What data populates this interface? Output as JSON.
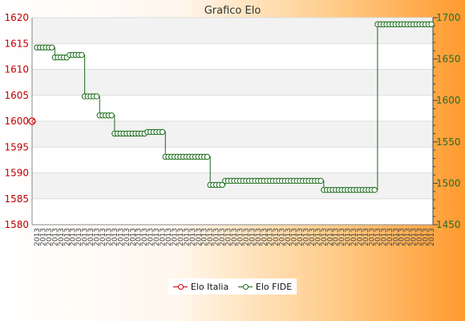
{
  "chart_data": {
    "type": "line",
    "title": "Grafico Elo",
    "y_left": {
      "ticks": [
        1580,
        1585,
        1590,
        1595,
        1600,
        1605,
        1610,
        1615,
        1620
      ],
      "range": [
        1580,
        1620
      ],
      "color": "#c00000"
    },
    "y_right": {
      "ticks": [
        1450,
        1500,
        1550,
        1600,
        1650,
        1700
      ],
      "range": [
        1450,
        1700
      ],
      "color": "#2a6a2a"
    },
    "x_label_sample": "2013",
    "grid": true,
    "legend_position": "bottom",
    "series": [
      {
        "name": "Elo Italia",
        "axis": "left",
        "color": "#cc0000",
        "values": [
          1600
        ]
      },
      {
        "name": "Elo FIDE",
        "axis": "right",
        "color": "#1a6b1a",
        "values": [
          1664,
          1664,
          1664,
          1664,
          1664,
          1664,
          1652,
          1652,
          1652,
          1652,
          1652,
          1655,
          1655,
          1655,
          1655,
          1655,
          1605,
          1605,
          1605,
          1605,
          1605,
          1582,
          1582,
          1582,
          1582,
          1582,
          1560,
          1560,
          1560,
          1560,
          1560,
          1560,
          1560,
          1560,
          1560,
          1560,
          1560,
          1562,
          1562,
          1562,
          1562,
          1562,
          1562,
          1532,
          1532,
          1532,
          1532,
          1532,
          1532,
          1532,
          1532,
          1532,
          1532,
          1532,
          1532,
          1532,
          1532,
          1532,
          1498,
          1498,
          1498,
          1498,
          1498,
          1503,
          1503,
          1503,
          1503,
          1503,
          1503,
          1503,
          1503,
          1503,
          1503,
          1503,
          1503,
          1503,
          1503,
          1503,
          1503,
          1503,
          1503,
          1503,
          1503,
          1503,
          1503,
          1503,
          1503,
          1503,
          1503,
          1503,
          1503,
          1503,
          1503,
          1503,
          1503,
          1503,
          1492,
          1492,
          1492,
          1492,
          1492,
          1492,
          1492,
          1492,
          1492,
          1492,
          1492,
          1492,
          1492,
          1492,
          1492,
          1492,
          1492,
          1492,
          1692,
          1692,
          1692,
          1692,
          1692,
          1692,
          1692,
          1692,
          1692,
          1692,
          1692,
          1692,
          1692,
          1692,
          1692,
          1692,
          1692,
          1692,
          1692
        ]
      }
    ]
  }
}
